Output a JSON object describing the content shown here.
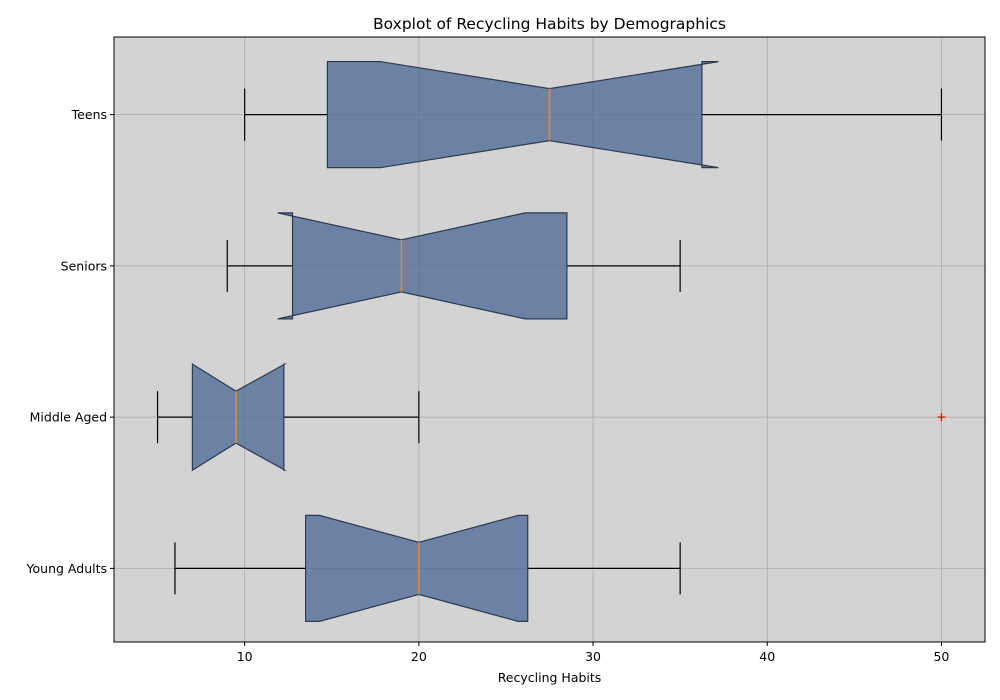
{
  "chart_data": {
    "type": "boxplot",
    "orientation": "horizontal",
    "notched": true,
    "title": "Boxplot of Recycling Habits by Demographics",
    "xlabel": "Recycling Habits",
    "ylabel": "",
    "xlim": [
      2.5,
      52.5
    ],
    "xticks": [
      10,
      20,
      30,
      40,
      50
    ],
    "grid": true,
    "categories": [
      "Teens",
      "Seniors",
      "Middle Aged",
      "Young Adults"
    ],
    "boxes": [
      {
        "label": "Teens",
        "whisker_low": 10,
        "q1": 14.75,
        "notch_low": 17.8,
        "median": 27.5,
        "notch_high": 37.2,
        "q3": 36.25,
        "whisker_high": 50,
        "outliers": []
      },
      {
        "label": "Seniors",
        "whisker_low": 9,
        "q1": 12.75,
        "notch_low": 11.9,
        "median": 19,
        "notch_high": 26.1,
        "q3": 28.5,
        "whisker_high": 35,
        "outliers": []
      },
      {
        "label": "Middle Aged",
        "whisker_low": 5,
        "q1": 7,
        "notch_low": 7,
        "median": 9.5,
        "notch_high": 12.3,
        "q3": 12.25,
        "whisker_high": 20,
        "outliers": [
          50
        ]
      },
      {
        "label": "Young Adults",
        "whisker_low": 6,
        "q1": 13.5,
        "notch_low": 14.3,
        "median": 20,
        "notch_high": 25.7,
        "q3": 26.25,
        "whisker_high": 35,
        "outliers": []
      }
    ],
    "colors": {
      "box_fill": "#4a6796",
      "box_edge": "#2e3a4f",
      "median": "#e08a3c",
      "outlier": "#ff0000",
      "plot_bg": "#d3d3d3",
      "grid": "#a9a9a9"
    }
  }
}
